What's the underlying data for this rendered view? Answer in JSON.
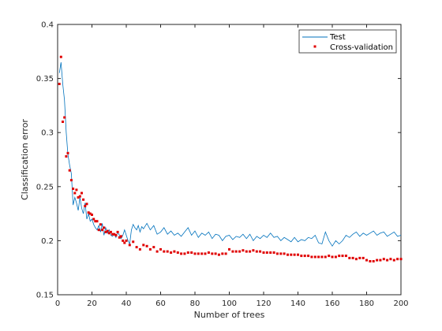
{
  "chart_data": {
    "type": "line",
    "xlabel": "Number of trees",
    "ylabel": "Classification error",
    "xlim": [
      0,
      200
    ],
    "ylim": [
      0.15,
      0.4
    ],
    "x_ticks": [
      0,
      20,
      40,
      60,
      80,
      100,
      120,
      140,
      160,
      180,
      200
    ],
    "y_ticks": [
      0.15,
      0.2,
      0.25,
      0.3,
      0.35,
      0.4
    ],
    "y_tick_labels": [
      "0.15",
      "0.2",
      "0.25",
      "0.3",
      "0.35",
      "0.4"
    ],
    "grid": false,
    "legend_position": "top-right",
    "series": [
      {
        "name": "Test",
        "style": "line",
        "color": "#0072BD",
        "x": [
          1,
          2,
          3,
          4,
          5,
          6,
          7,
          8,
          9,
          10,
          11,
          12,
          13,
          14,
          15,
          16,
          17,
          18,
          19,
          20,
          21,
          22,
          23,
          24,
          25,
          26,
          27,
          28,
          29,
          30,
          31,
          32,
          33,
          34,
          35,
          36,
          37,
          38,
          39,
          40,
          41,
          42,
          43,
          44,
          45,
          46,
          47,
          48,
          49,
          50,
          52,
          54,
          56,
          58,
          60,
          62,
          64,
          66,
          68,
          70,
          72,
          74,
          76,
          78,
          80,
          82,
          84,
          86,
          88,
          90,
          92,
          94,
          96,
          98,
          100,
          102,
          104,
          106,
          108,
          110,
          112,
          114,
          116,
          118,
          120,
          122,
          124,
          126,
          128,
          130,
          132,
          134,
          136,
          138,
          140,
          142,
          144,
          146,
          148,
          150,
          152,
          154,
          156,
          158,
          160,
          162,
          164,
          166,
          168,
          170,
          172,
          174,
          176,
          178,
          180,
          182,
          184,
          186,
          188,
          190,
          192,
          194,
          196,
          198,
          200
        ],
        "values": [
          0.355,
          0.365,
          0.345,
          0.33,
          0.3,
          0.28,
          0.27,
          0.262,
          0.233,
          0.24,
          0.235,
          0.228,
          0.24,
          0.23,
          0.225,
          0.235,
          0.22,
          0.225,
          0.218,
          0.22,
          0.215,
          0.212,
          0.21,
          0.214,
          0.208,
          0.216,
          0.205,
          0.212,
          0.207,
          0.21,
          0.205,
          0.204,
          0.206,
          0.203,
          0.208,
          0.205,
          0.202,
          0.205,
          0.21,
          0.205,
          0.2,
          0.197,
          0.21,
          0.215,
          0.212,
          0.21,
          0.214,
          0.208,
          0.213,
          0.211,
          0.216,
          0.21,
          0.214,
          0.206,
          0.208,
          0.212,
          0.206,
          0.209,
          0.205,
          0.207,
          0.204,
          0.208,
          0.212,
          0.205,
          0.209,
          0.203,
          0.207,
          0.205,
          0.208,
          0.202,
          0.206,
          0.205,
          0.2,
          0.204,
          0.205,
          0.201,
          0.204,
          0.203,
          0.206,
          0.202,
          0.206,
          0.2,
          0.204,
          0.202,
          0.205,
          0.203,
          0.207,
          0.203,
          0.204,
          0.2,
          0.203,
          0.201,
          0.199,
          0.203,
          0.199,
          0.201,
          0.2,
          0.203,
          0.202,
          0.205,
          0.198,
          0.197,
          0.208,
          0.2,
          0.195,
          0.2,
          0.197,
          0.2,
          0.205,
          0.203,
          0.206,
          0.208,
          0.204,
          0.207,
          0.205,
          0.207,
          0.209,
          0.205,
          0.207,
          0.208,
          0.204,
          0.206,
          0.208,
          0.204,
          0.205
        ]
      },
      {
        "name": "Cross-validation",
        "style": "markers",
        "color": "#E00000",
        "x": [
          1,
          2,
          3,
          4,
          5,
          6,
          7,
          8,
          9,
          10,
          11,
          12,
          13,
          14,
          15,
          16,
          17,
          18,
          19,
          20,
          21,
          22,
          23,
          24,
          25,
          26,
          27,
          28,
          29,
          30,
          31,
          32,
          33,
          34,
          35,
          36,
          37,
          38,
          39,
          40,
          42,
          44,
          46,
          48,
          50,
          52,
          54,
          56,
          58,
          60,
          62,
          64,
          66,
          68,
          70,
          72,
          74,
          76,
          78,
          80,
          82,
          84,
          86,
          88,
          90,
          92,
          94,
          96,
          98,
          100,
          102,
          104,
          106,
          108,
          110,
          112,
          114,
          116,
          118,
          120,
          122,
          124,
          126,
          128,
          130,
          132,
          134,
          136,
          138,
          140,
          142,
          144,
          146,
          148,
          150,
          152,
          154,
          156,
          158,
          160,
          162,
          164,
          166,
          168,
          170,
          172,
          174,
          176,
          178,
          180,
          182,
          184,
          186,
          188,
          190,
          192,
          194,
          196,
          198,
          200
        ],
        "values": [
          0.345,
          0.37,
          0.31,
          0.314,
          0.278,
          0.281,
          0.265,
          0.256,
          0.248,
          0.244,
          0.247,
          0.24,
          0.241,
          0.244,
          0.238,
          0.232,
          0.234,
          0.226,
          0.225,
          0.224,
          0.22,
          0.218,
          0.218,
          0.21,
          0.215,
          0.21,
          0.212,
          0.208,
          0.209,
          0.207,
          0.208,
          0.206,
          0.206,
          0.205,
          0.208,
          0.203,
          0.204,
          0.2,
          0.198,
          0.2,
          0.196,
          0.199,
          0.194,
          0.192,
          0.196,
          0.195,
          0.192,
          0.194,
          0.19,
          0.192,
          0.19,
          0.19,
          0.189,
          0.19,
          0.189,
          0.188,
          0.188,
          0.189,
          0.189,
          0.188,
          0.188,
          0.188,
          0.188,
          0.189,
          0.188,
          0.188,
          0.187,
          0.188,
          0.188,
          0.192,
          0.19,
          0.19,
          0.19,
          0.191,
          0.19,
          0.19,
          0.191,
          0.19,
          0.19,
          0.189,
          0.189,
          0.189,
          0.189,
          0.188,
          0.188,
          0.188,
          0.187,
          0.187,
          0.187,
          0.187,
          0.186,
          0.186,
          0.186,
          0.185,
          0.185,
          0.185,
          0.185,
          0.185,
          0.186,
          0.185,
          0.185,
          0.186,
          0.186,
          0.186,
          0.184,
          0.184,
          0.183,
          0.184,
          0.184,
          0.182,
          0.181,
          0.181,
          0.182,
          0.182,
          0.183,
          0.182,
          0.183,
          0.182,
          0.183,
          0.183
        ]
      }
    ]
  }
}
